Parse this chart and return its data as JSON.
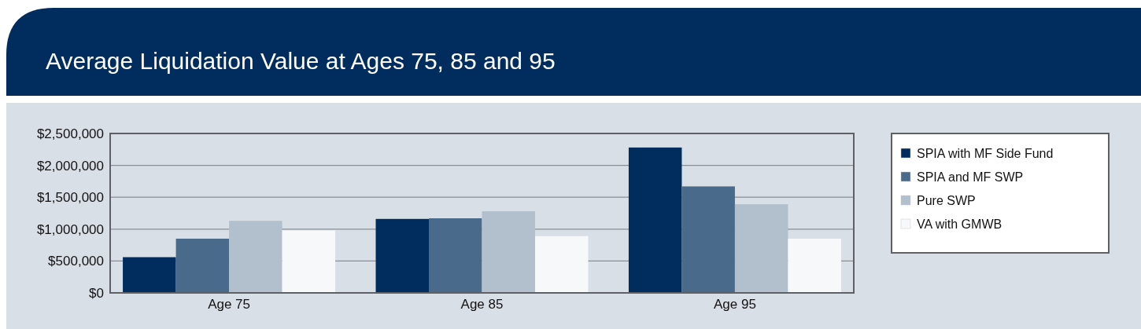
{
  "chart_data": {
    "type": "bar",
    "title": "Average Liquidation Value at Ages 75, 85 and 95",
    "categories": [
      "Age 75",
      "Age 85",
      "Age 95"
    ],
    "series": [
      {
        "name": "SPIA with MF Side Fund",
        "color": "#002d5e",
        "values": [
          560000,
          1160000,
          2280000
        ]
      },
      {
        "name": "SPIA and MF SWP",
        "color": "#4a6a8c",
        "values": [
          850000,
          1170000,
          1670000
        ]
      },
      {
        "name": "Pure SWP",
        "color": "#b2bfcc",
        "values": [
          1130000,
          1280000,
          1390000
        ]
      },
      {
        "name": "VA with GMWB",
        "color": "#f7f8fa",
        "values": [
          980000,
          890000,
          850000
        ]
      }
    ],
    "ylim": [
      0,
      2500000
    ],
    "yticks": [
      {
        "value": 0,
        "label": "$0"
      },
      {
        "value": 500000,
        "label": "$500,000"
      },
      {
        "value": 1000000,
        "label": "$1,000,000"
      },
      {
        "value": 1500000,
        "label": "$1,500,000"
      },
      {
        "value": 2000000,
        "label": "$2,000,000"
      },
      {
        "value": 2500000,
        "label": "$2,500,000"
      }
    ],
    "grid": "y",
    "legend": "right"
  }
}
